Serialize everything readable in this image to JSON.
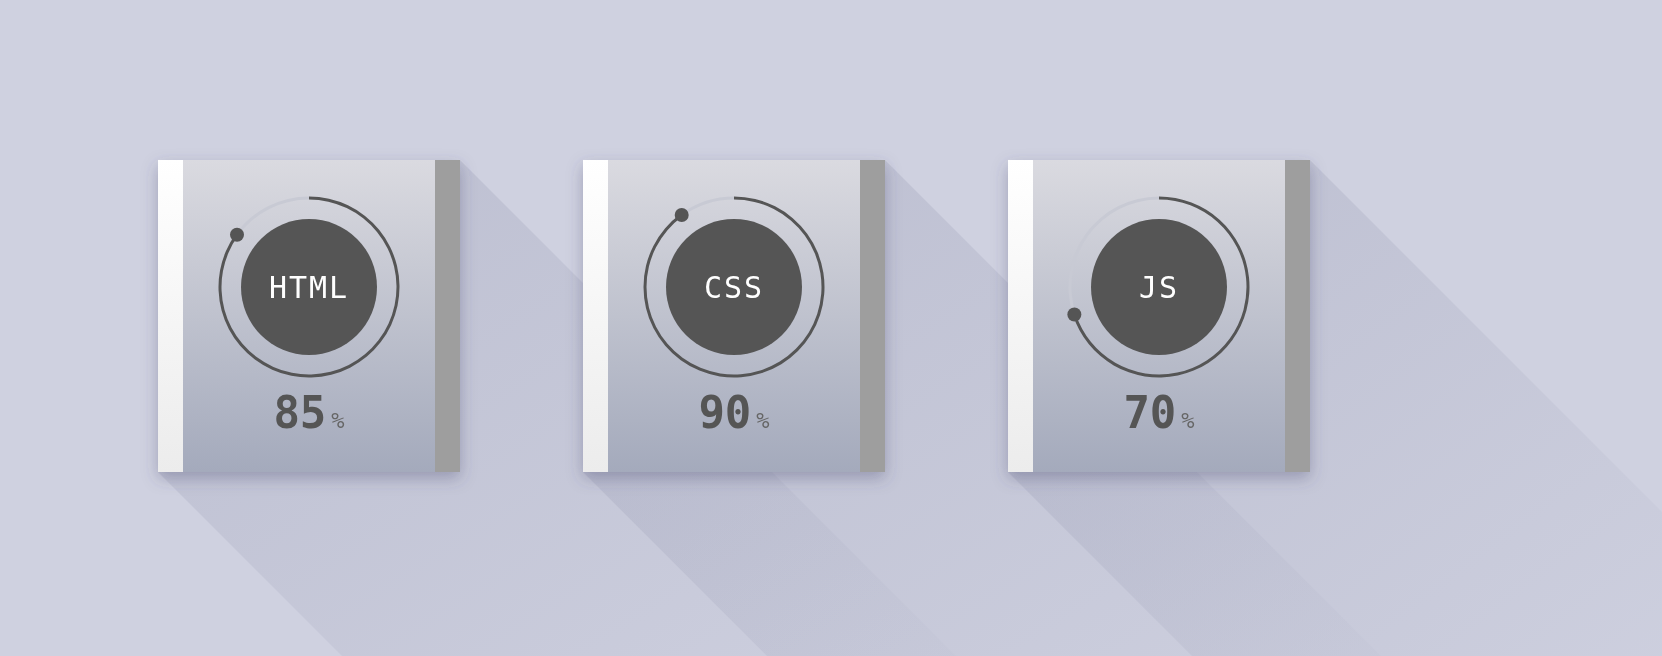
{
  "chart_data": [
    {
      "type": "donut",
      "title": "HTML",
      "categories": [
        null,
        null
      ],
      "values": [
        85,
        15
      ],
      "colors": [
        "#555555",
        "#c8cad4"
      ],
      "value_labels": [
        "85%",
        null
      ]
    },
    {
      "type": "donut",
      "title": "CSS",
      "categories": [
        null,
        null
      ],
      "values": [
        90,
        10
      ],
      "colors": [
        "#555555",
        "#c8cad4"
      ],
      "value_labels": [
        "90%",
        null
      ]
    },
    {
      "type": "donut",
      "title": "JS",
      "categories": [
        null,
        null
      ],
      "values": [
        70,
        30
      ],
      "colors": [
        "#555555",
        "#c8cad4"
      ],
      "value_labels": [
        "70%",
        null
      ]
    }
  ]
}
